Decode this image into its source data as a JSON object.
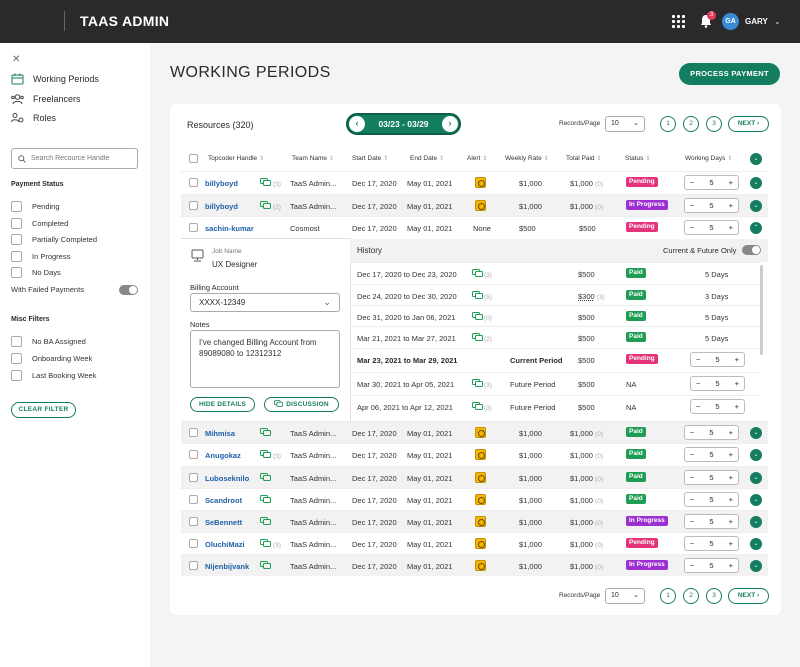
{
  "header": {
    "app_title": "TAAS ADMIN",
    "notification_count": "3",
    "avatar_initials": "GA",
    "username": "GARY"
  },
  "sidebar": {
    "nav": [
      {
        "label": "Working Periods",
        "icon": "calendar-icon"
      },
      {
        "label": "Freelancers",
        "icon": "people-icon"
      },
      {
        "label": "Roles",
        "icon": "roles-icon"
      }
    ],
    "search_placeholder": "Search Recource Handle",
    "payment_status_heading": "Payment Status",
    "payment_statuses": [
      "Pending",
      "Completed",
      "Partially Completed",
      "In Progress",
      "No Days"
    ],
    "failed_payments_label": "With Failed Payments",
    "misc_heading": "Misc Filters",
    "misc_filters": [
      "No BA Assigned",
      "Onboarding Week",
      "Last Booking Week"
    ],
    "clear_filter": "CLEAR FILTER"
  },
  "main": {
    "title": "WORKING PERIODS",
    "process_payment": "PROCESS PAYMENT",
    "resources_label": "Resources (320)",
    "period": "03/23 - 03/29",
    "records_per_page_label": "Records/Page",
    "records_per_page": "10",
    "pages": [
      "1",
      "2",
      "3"
    ],
    "next": "NEXT"
  },
  "table": {
    "headers": [
      "Topcoder Handle",
      "Team Name",
      "Start Date",
      "End Date",
      "Alert",
      "Weekly Rate",
      "Total Paid",
      "Status",
      "Working Days"
    ],
    "rows": [
      {
        "handle": "billyboyd",
        "chat_count": "(3)",
        "team": "TaaS Admin...",
        "start": "Dec 17, 2020",
        "end": "May 01, 2021",
        "rate": "$1,000",
        "paid": "$1,000",
        "paid_count": "(0)",
        "status": "Pending",
        "days": "5"
      },
      {
        "handle": "billyboyd",
        "chat_count": "(2)",
        "team": "TaaS Admin...",
        "start": "Dec 17, 2020",
        "end": "May 01, 2021",
        "rate": "$1,000",
        "paid": "$1,000",
        "paid_count": "(0)",
        "status": "In Progress",
        "days": "5"
      },
      {
        "handle": "sachin-kumar",
        "chat_count": "",
        "team": "Cosmost",
        "start": "Dec 17, 2020",
        "end": "May 01, 2021",
        "alert_text": "None",
        "rate": "$500",
        "paid": "$500",
        "paid_count": "",
        "status": "Pending",
        "days": "5"
      },
      {
        "handle": "Mihmisa",
        "chat_count": "",
        "team": "TaaS Admin...",
        "start": "Dec 17, 2020",
        "end": "May 01, 2021",
        "rate": "$1,000",
        "paid": "$1,000",
        "paid_count": "(0)",
        "status": "Paid",
        "days": "5"
      },
      {
        "handle": "Anugokaz",
        "chat_count": "(3)",
        "team": "TaaS Admin...",
        "start": "Dec 17, 2020",
        "end": "May 01, 2021",
        "rate": "$1,000",
        "paid": "$1,000",
        "paid_count": "(0)",
        "status": "Paid",
        "days": "5"
      },
      {
        "handle": "Luboseknilo",
        "chat_count": "",
        "team": "TaaS Admin...",
        "start": "Dec 17, 2020",
        "end": "May 01, 2021",
        "rate": "$1,000",
        "paid": "$1,000",
        "paid_count": "(0)",
        "status": "Paid",
        "days": "5"
      },
      {
        "handle": "Scandroot",
        "chat_count": "",
        "team": "TaaS Admin...",
        "start": "Dec 17, 2020",
        "end": "May 01, 2021",
        "rate": "$1,000",
        "paid": "$1,000",
        "paid_count": "(0)",
        "status": "Paid",
        "days": "5"
      },
      {
        "handle": "SeBennett",
        "chat_count": "",
        "team": "TaaS Admin...",
        "start": "Dec 17, 2020",
        "end": "May 01, 2021",
        "rate": "$1,000",
        "paid": "$1,000",
        "paid_count": "(0)",
        "status": "In Progress",
        "days": "5"
      },
      {
        "handle": "OluchiMazi",
        "chat_count": "(3)",
        "team": "TaaS Admin...",
        "start": "Dec 17, 2020",
        "end": "May 01, 2021",
        "rate": "$1,000",
        "paid": "$1,000",
        "paid_count": "(0)",
        "status": "Pending",
        "days": "5"
      },
      {
        "handle": "Nijenbijvank",
        "chat_count": "",
        "team": "TaaS Admin...",
        "start": "Dec 17, 2020",
        "end": "May 01, 2021",
        "rate": "$1,000",
        "paid": "$1,000",
        "paid_count": "(0)",
        "status": "In Progress",
        "days": "5"
      }
    ]
  },
  "detail": {
    "job_name_label": "Job Name",
    "job_name": "UX Designer",
    "billing_label": "Billing Account",
    "billing_value": "XXXX-12349",
    "notes_label": "Notes",
    "notes": "I've changed Billing Account from 89089080 to 12312312",
    "hide_details": "HIDE DETAILS",
    "discussion": "DISCUSSION",
    "history_title": "History",
    "current_future_label": "Current & Future Only",
    "history": [
      {
        "range": "Dec 17, 2020 to Dec 23, 2020",
        "chat": "(3)",
        "period": "",
        "amount": "$500",
        "amount_count": "",
        "status": "Paid",
        "days": "5 Days"
      },
      {
        "range": "Dec 24, 2020 to Dec 30, 2020",
        "chat": "(5)",
        "period": "",
        "amount": "$300",
        "amount_count": "(3)",
        "status": "Paid",
        "days": "3 Days"
      },
      {
        "range": "Dec 31, 2020 to Jan 06, 2021",
        "chat": "(0)",
        "period": "",
        "amount": "$500",
        "amount_count": "",
        "status": "Paid",
        "days": "5 Days"
      },
      {
        "range": "Mar 21, 2021 to Mar 27, 2021",
        "chat": "(2)",
        "period": "",
        "amount": "$500",
        "amount_count": "",
        "status": "Paid",
        "days": "5 Days"
      },
      {
        "range": "Mar 23, 2021 to Mar 29, 2021",
        "chat": "",
        "period": "Current Period",
        "amount": "$500",
        "amount_count": "",
        "status": "Pending",
        "days": "5"
      },
      {
        "range": "Mar 30, 2021 to Apr 05, 2021",
        "chat": "(3)",
        "period": "Future Period",
        "amount": "$500",
        "amount_count": "",
        "status": "NA",
        "days": "5"
      },
      {
        "range": "Apr 06, 2021 to Apr 12, 2021",
        "chat": "(3)",
        "period": "Future Period",
        "amount": "$500",
        "amount_count": "",
        "status": "NA",
        "days": "5"
      }
    ]
  },
  "colors": {
    "accent": "#137d60",
    "pending": "#e4337a",
    "in_progress": "#9b2fd1",
    "paid": "#1f9d55",
    "alert": "#f2b705",
    "link": "#1f5fa8"
  }
}
